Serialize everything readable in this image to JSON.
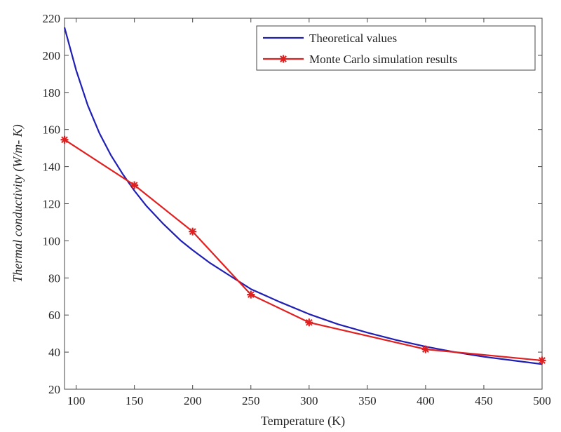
{
  "chart_data": {
    "type": "line",
    "title": "",
    "xlabel": "Temperature (K)",
    "ylabel": "Thermal conductivity  (W/m- K)",
    "xlim": [
      90,
      500
    ],
    "ylim": [
      20,
      220
    ],
    "x_ticks": [
      100,
      150,
      200,
      250,
      300,
      350,
      400,
      450,
      500
    ],
    "y_ticks": [
      20,
      40,
      60,
      80,
      100,
      120,
      140,
      160,
      180,
      200,
      220
    ],
    "grid": false,
    "legend_position": "top-right",
    "series": [
      {
        "name": "Theoretical values",
        "color": "#1f1fb4",
        "marker": "none",
        "x": [
          90,
          100,
          110,
          120,
          130,
          140,
          150,
          160,
          175,
          190,
          200,
          215,
          230,
          250,
          275,
          300,
          325,
          350,
          375,
          400,
          425,
          450,
          475,
          500
        ],
        "y": [
          215,
          192,
          173,
          158,
          146,
          136,
          127,
          119,
          109,
          100,
          95,
          88,
          82,
          74,
          67,
          60.5,
          55,
          50.5,
          46.5,
          43,
          40,
          37.5,
          35.5,
          33.5
        ]
      },
      {
        "name": "Monte Carlo simulation results",
        "color": "#e02020",
        "marker": "star",
        "x": [
          90,
          150,
          200,
          250,
          300,
          400,
          500
        ],
        "y": [
          154.5,
          130,
          105,
          71,
          56,
          41.5,
          35.5
        ]
      }
    ]
  }
}
